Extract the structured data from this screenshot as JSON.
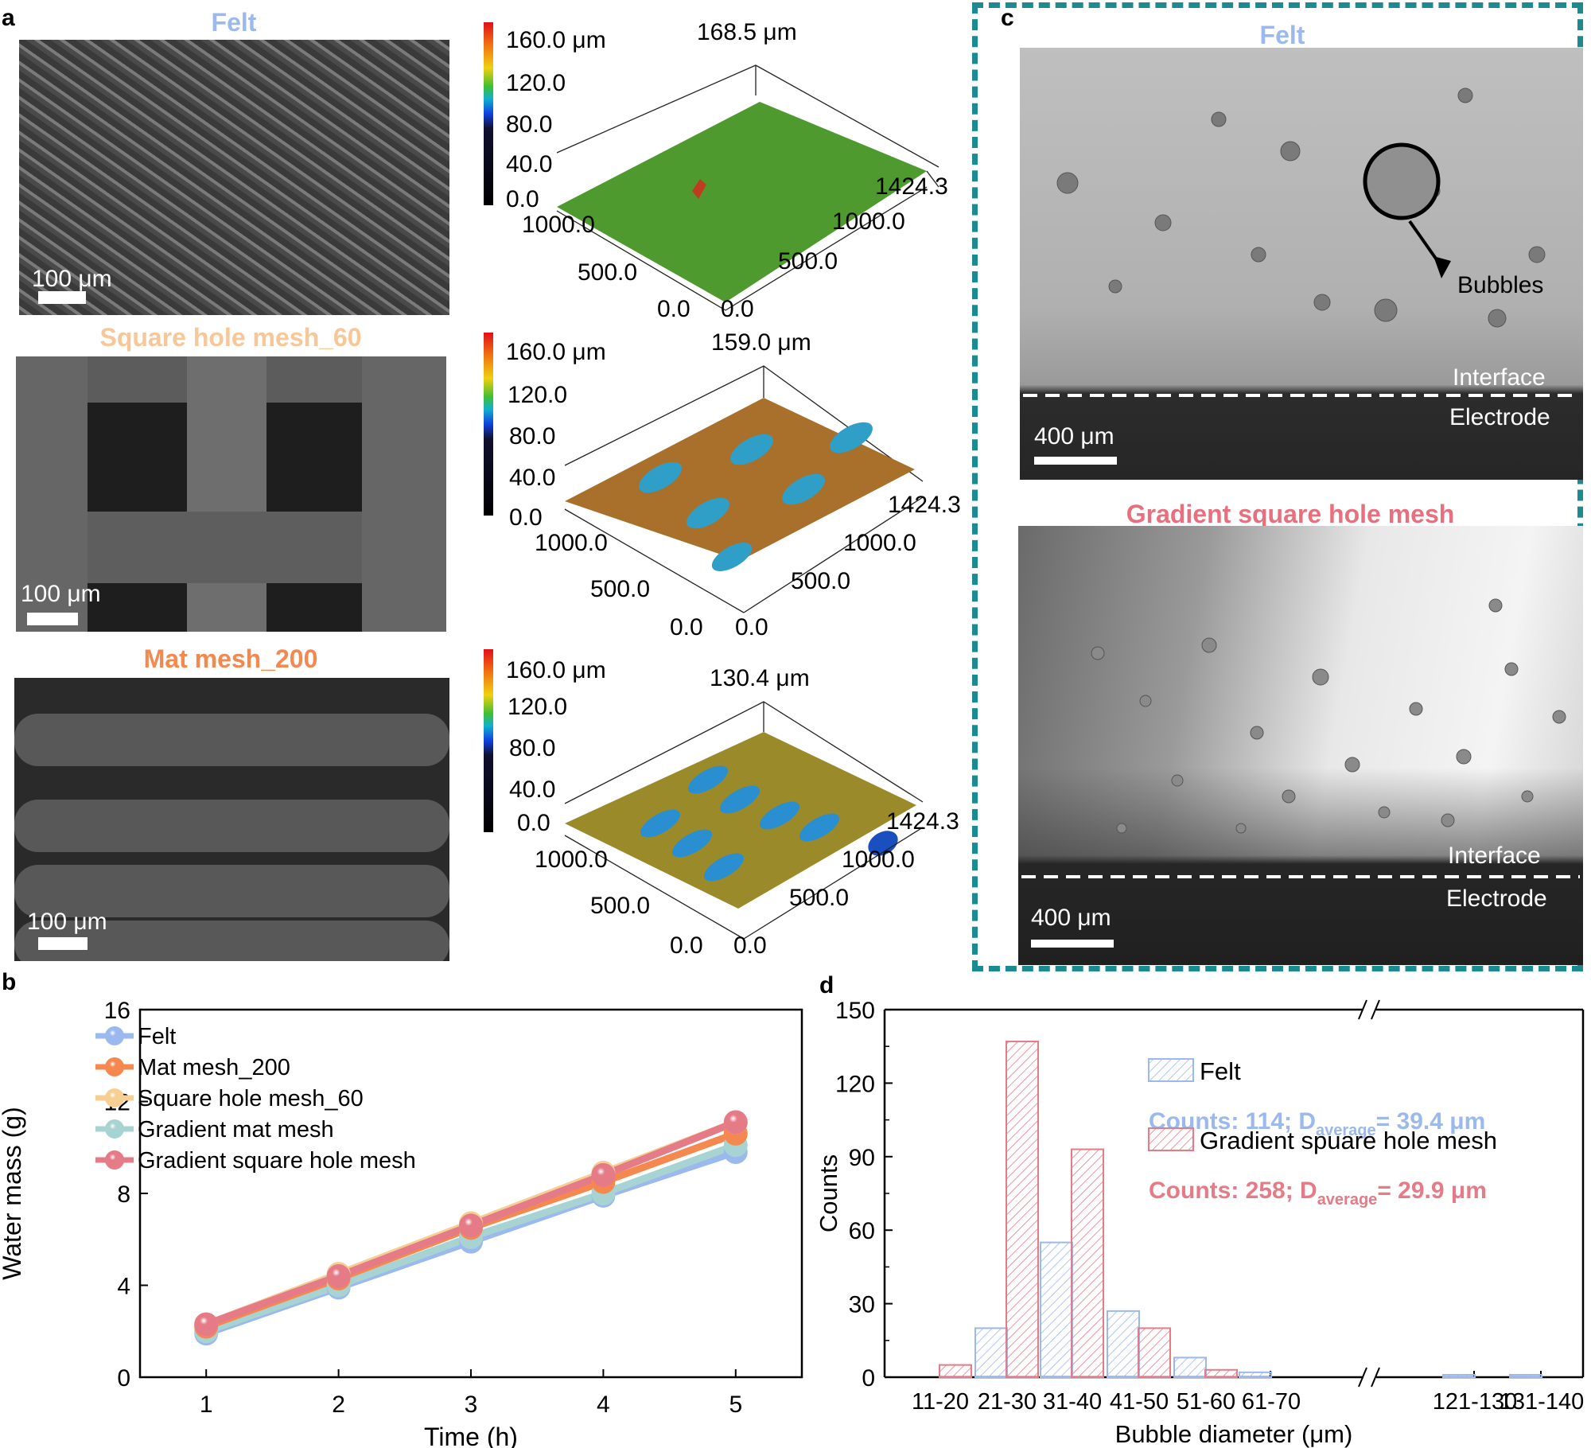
{
  "panel_labels": {
    "a": "a",
    "b": "b",
    "c": "c",
    "d": "d"
  },
  "panel_a": {
    "rows": [
      {
        "title": "Felt",
        "title_color": "#9bb8ef",
        "scale_bar": "100 μm",
        "colorbar": [
          "160.0 μm",
          "120.0",
          "80.0",
          "40.0",
          "0.0"
        ],
        "surface_max": "168.5 μm",
        "axis_labels": {
          "left_1000": "1000.0",
          "left_500": "500.0",
          "left_0": "0.0",
          "right_0": "0.0",
          "right_500": "500.0",
          "right_1000": "1000.0",
          "right_max": "1424.3"
        },
        "surface_color": "#4f9a2f"
      },
      {
        "title": "Square hole mesh_60",
        "title_color": "#f7c79a",
        "scale_bar": "100 μm",
        "colorbar": [
          "160.0 μm",
          "120.0",
          "80.0",
          "40.0",
          "0.0"
        ],
        "surface_max": "159.0 μm",
        "axis_labels": {
          "left_1000": "1000.0",
          "left_500": "500.0",
          "left_0": "0.0",
          "right_0": "0.0",
          "right_500": "500.0",
          "right_1000": "1000.0",
          "right_max": "1424.3"
        },
        "surface_color": "#a8702a"
      },
      {
        "title": "Mat mesh_200",
        "title_color": "#f5884f",
        "scale_bar": "100 μm",
        "colorbar": [
          "160.0 μm",
          "120.0",
          "80.0",
          "40.0",
          "0.0"
        ],
        "surface_max": "130.4 μm",
        "axis_labels": {
          "left_1000": "1000.0",
          "left_500": "500.0",
          "left_0": "0.0",
          "right_0": "0.0",
          "right_500": "500.0",
          "right_1000": "1000.0",
          "right_max": "1424.3"
        },
        "surface_color": "#9a8a2a"
      }
    ]
  },
  "panel_c": {
    "border_color": "#1b8a91",
    "images": [
      {
        "title": "Felt",
        "title_color": "#9bb8ef",
        "scale_bar": "400 μm",
        "interface_label": "Interface",
        "electrode_label": "Electrode",
        "annotation": "Bubbles"
      },
      {
        "title": "Gradient square hole mesh",
        "title_color": "#e8707e",
        "scale_bar": "400 μm",
        "interface_label": "Interface",
        "electrode_label": "Electrode"
      }
    ]
  },
  "chart_data": [
    {
      "type": "line",
      "panel": "b",
      "title": "",
      "xlabel": "Time (h)",
      "ylabel": "Water mass (g)",
      "x": [
        1,
        2,
        3,
        4,
        5
      ],
      "xticks": [
        "1",
        "2",
        "3",
        "4",
        "5"
      ],
      "yticks": [
        "0",
        "4",
        "8",
        "12",
        "16"
      ],
      "ylim": [
        0,
        16
      ],
      "xlim": [
        0.5,
        5.5
      ],
      "grid": false,
      "legend_position": "upper-left",
      "series": [
        {
          "name": "Felt",
          "color": "#9bb8ef",
          "values": [
            1.9,
            3.9,
            5.9,
            7.9,
            9.8
          ]
        },
        {
          "name": "Mat mesh_200",
          "color": "#f5884f",
          "values": [
            2.2,
            4.3,
            6.5,
            8.5,
            10.6
          ]
        },
        {
          "name": "Square hole mesh_60",
          "color": "#f7cf94",
          "values": [
            2.3,
            4.5,
            6.7,
            8.9,
            11.1
          ]
        },
        {
          "name": "Gradient mat mesh",
          "color": "#a7d4d3",
          "values": [
            2.0,
            4.0,
            6.1,
            8.0,
            10.1
          ]
        },
        {
          "name": "Gradient square hole mesh",
          "color": "#e57b87",
          "values": [
            2.3,
            4.4,
            6.6,
            8.8,
            11.1
          ]
        }
      ]
    },
    {
      "type": "bar",
      "panel": "d",
      "title": "",
      "xlabel": "Bubble diameter (μm)",
      "ylabel": "Counts",
      "categories": [
        "11-20",
        "21-30",
        "31-40",
        "41-50",
        "51-60",
        "61-70",
        "121-130",
        "131-140"
      ],
      "yticks": [
        "0",
        "30",
        "60",
        "90",
        "120",
        "150"
      ],
      "ylim": [
        0,
        150
      ],
      "axis_break": "between 61-70 and 121-130",
      "grid": false,
      "legend_position": "upper-right",
      "series": [
        {
          "name": "Felt",
          "color": "#9bb8ef",
          "pattern": "hatched",
          "values": [
            0,
            20,
            55,
            27,
            8,
            2,
            1,
            1
          ],
          "summary": "Counts: 114; D",
          "summary_sub": "average",
          "summary_tail": "= 39.4 μm"
        },
        {
          "name": "Gradient spuare hole mesh",
          "color": "#e57b87",
          "pattern": "hatched",
          "values": [
            5,
            137,
            93,
            20,
            3,
            0,
            0,
            0
          ],
          "summary": "Counts: 258; D",
          "summary_sub": "average",
          "summary_tail": "= 29.9 μm"
        }
      ]
    }
  ]
}
